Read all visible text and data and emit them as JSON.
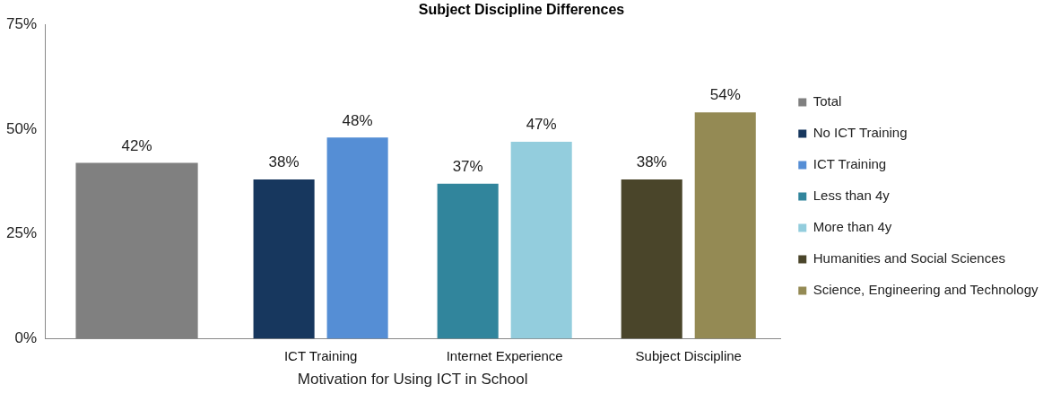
{
  "chart_data": {
    "type": "bar",
    "title": "Subject Discipline Differences",
    "xlabel": "Motivation for Using ICT in School",
    "categories": [
      null,
      "ICT Training",
      "Internet Experience",
      "Subject Discipline"
    ],
    "series": [
      {
        "name": "Total",
        "color": "#808080",
        "values": [
          42,
          null,
          null,
          null
        ],
        "value_labels": [
          "42%",
          null,
          null,
          null
        ]
      },
      {
        "name": "No ICT Training",
        "color": "#17375e",
        "values": [
          null,
          38,
          null,
          null
        ],
        "value_labels": [
          null,
          "38%",
          null,
          null
        ]
      },
      {
        "name": "ICT Training",
        "color": "#558ed5",
        "values": [
          null,
          48,
          null,
          null
        ],
        "value_labels": [
          null,
          "48%",
          null,
          null
        ]
      },
      {
        "name": "Less than 4y",
        "color": "#31859c",
        "values": [
          null,
          null,
          37,
          null
        ],
        "value_labels": [
          null,
          null,
          "37%",
          null
        ]
      },
      {
        "name": "More than 4y",
        "color": "#93cddd",
        "values": [
          null,
          null,
          47,
          null
        ],
        "value_labels": [
          null,
          null,
          "47%",
          null
        ]
      },
      {
        "name": "Humanities and Social Sciences",
        "color": "#4a452a",
        "values": [
          null,
          null,
          null,
          38
        ],
        "value_labels": [
          null,
          null,
          null,
          "38%"
        ]
      },
      {
        "name": "Science, Engineering and Technology",
        "color": "#948a54",
        "values": [
          null,
          null,
          null,
          54
        ],
        "value_labels": [
          null,
          null,
          null,
          "54%"
        ]
      }
    ],
    "ylim": [
      0,
      75
    ],
    "yticks": [
      {
        "value": 0,
        "label": "0%"
      },
      {
        "value": 25,
        "label": "25%"
      },
      {
        "value": 50,
        "label": "50%"
      },
      {
        "value": 75,
        "label": "75%"
      }
    ],
    "legend": "right",
    "grid": false
  }
}
